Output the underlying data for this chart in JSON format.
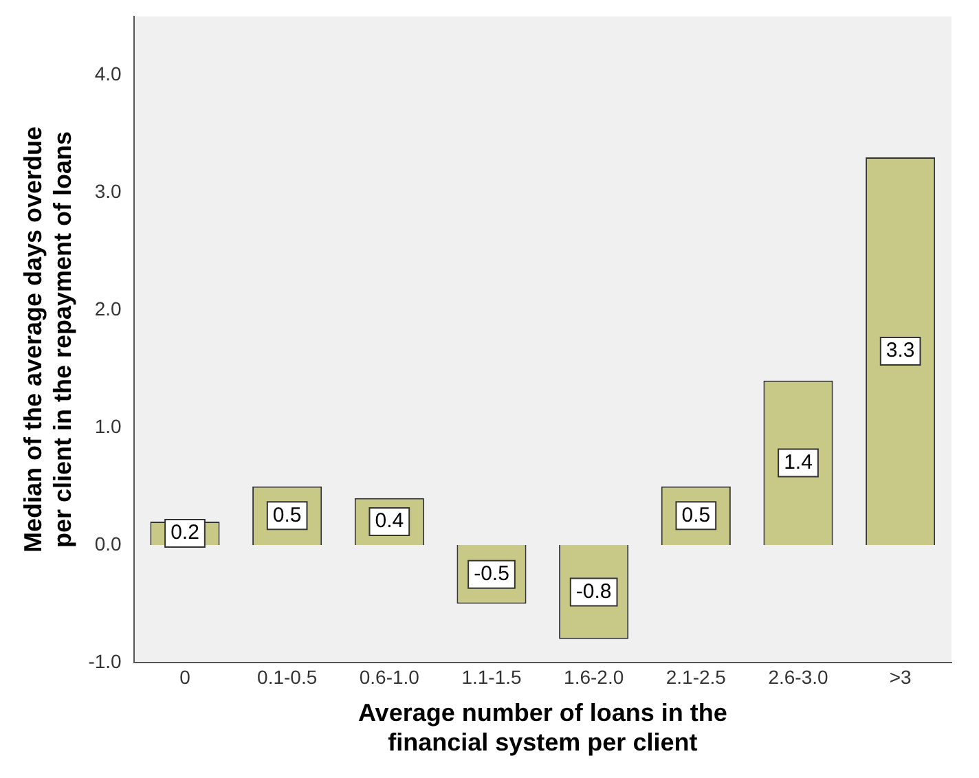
{
  "chart_data": {
    "type": "bar",
    "xlabel": "Average number of loans in the financial system per client",
    "ylabel": "Median of the average days overdue per client in the repayment of loans",
    "categories": [
      "0",
      "0.1-0.5",
      "0.6-1.0",
      "1.1-1.5",
      "1.6-2.0",
      "2.1-2.5",
      "2.6-3.0",
      ">3"
    ],
    "values": [
      0.2,
      0.5,
      0.4,
      -0.5,
      -0.8,
      0.5,
      1.4,
      3.3
    ],
    "color": "#c8c987",
    "ylim": [
      -1,
      4.5
    ],
    "yticks": [
      {
        "value": -1,
        "label": "-1.0"
      },
      {
        "value": 0,
        "label": "0.0"
      },
      {
        "value": 1,
        "label": "1.0"
      },
      {
        "value": 2,
        "label": "2.0"
      },
      {
        "value": 3,
        "label": "3.0"
      },
      {
        "value": 4,
        "label": "4.0"
      }
    ],
    "data_labels": true,
    "grid": false,
    "legend": false
  }
}
